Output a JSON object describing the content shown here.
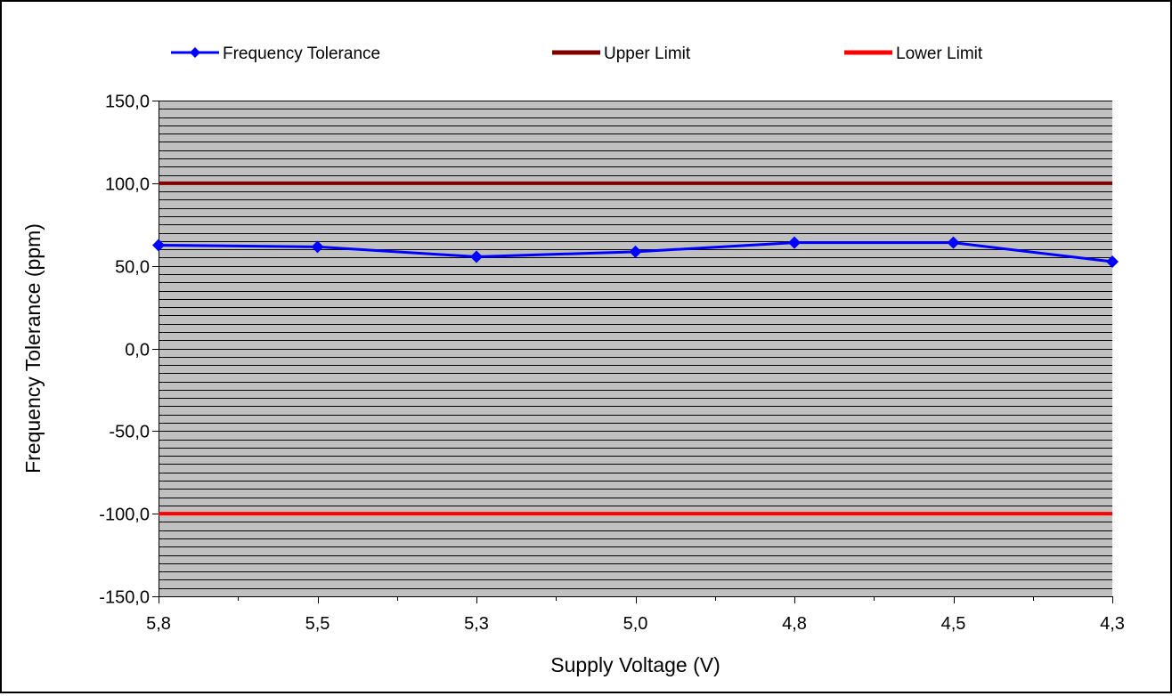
{
  "chart_data": {
    "type": "line",
    "title": "",
    "xlabel": "Supply Voltage (V)",
    "ylabel": "Frequency Tolerance (ppm)",
    "categories": [
      "5,8",
      "5,5",
      "5,3",
      "5,0",
      "4,8",
      "4,5",
      "4,3"
    ],
    "y_ticks": [
      "150,0",
      "100,0",
      "50,0",
      "0,0",
      "-50,0",
      "-100,0",
      "-150,0"
    ],
    "ylim": [
      -150,
      150
    ],
    "y_major_step": 50,
    "y_minor_step": 5,
    "grid": true,
    "plot_background": "#c0c0c0",
    "legend_position": "top",
    "series": [
      {
        "name": "Frequency Tolerance",
        "color": "#0000ff",
        "marker": "diamond",
        "values": [
          62.5,
          61.5,
          55.5,
          58.5,
          64,
          64,
          52.5
        ]
      },
      {
        "name": "Upper Limit",
        "color": "#800000",
        "marker": "none",
        "values": [
          100,
          100,
          100,
          100,
          100,
          100,
          100
        ]
      },
      {
        "name": "Lower Limit",
        "color": "#ff0000",
        "marker": "none",
        "values": [
          -100,
          -100,
          -100,
          -100,
          -100,
          -100,
          -100
        ]
      }
    ]
  }
}
